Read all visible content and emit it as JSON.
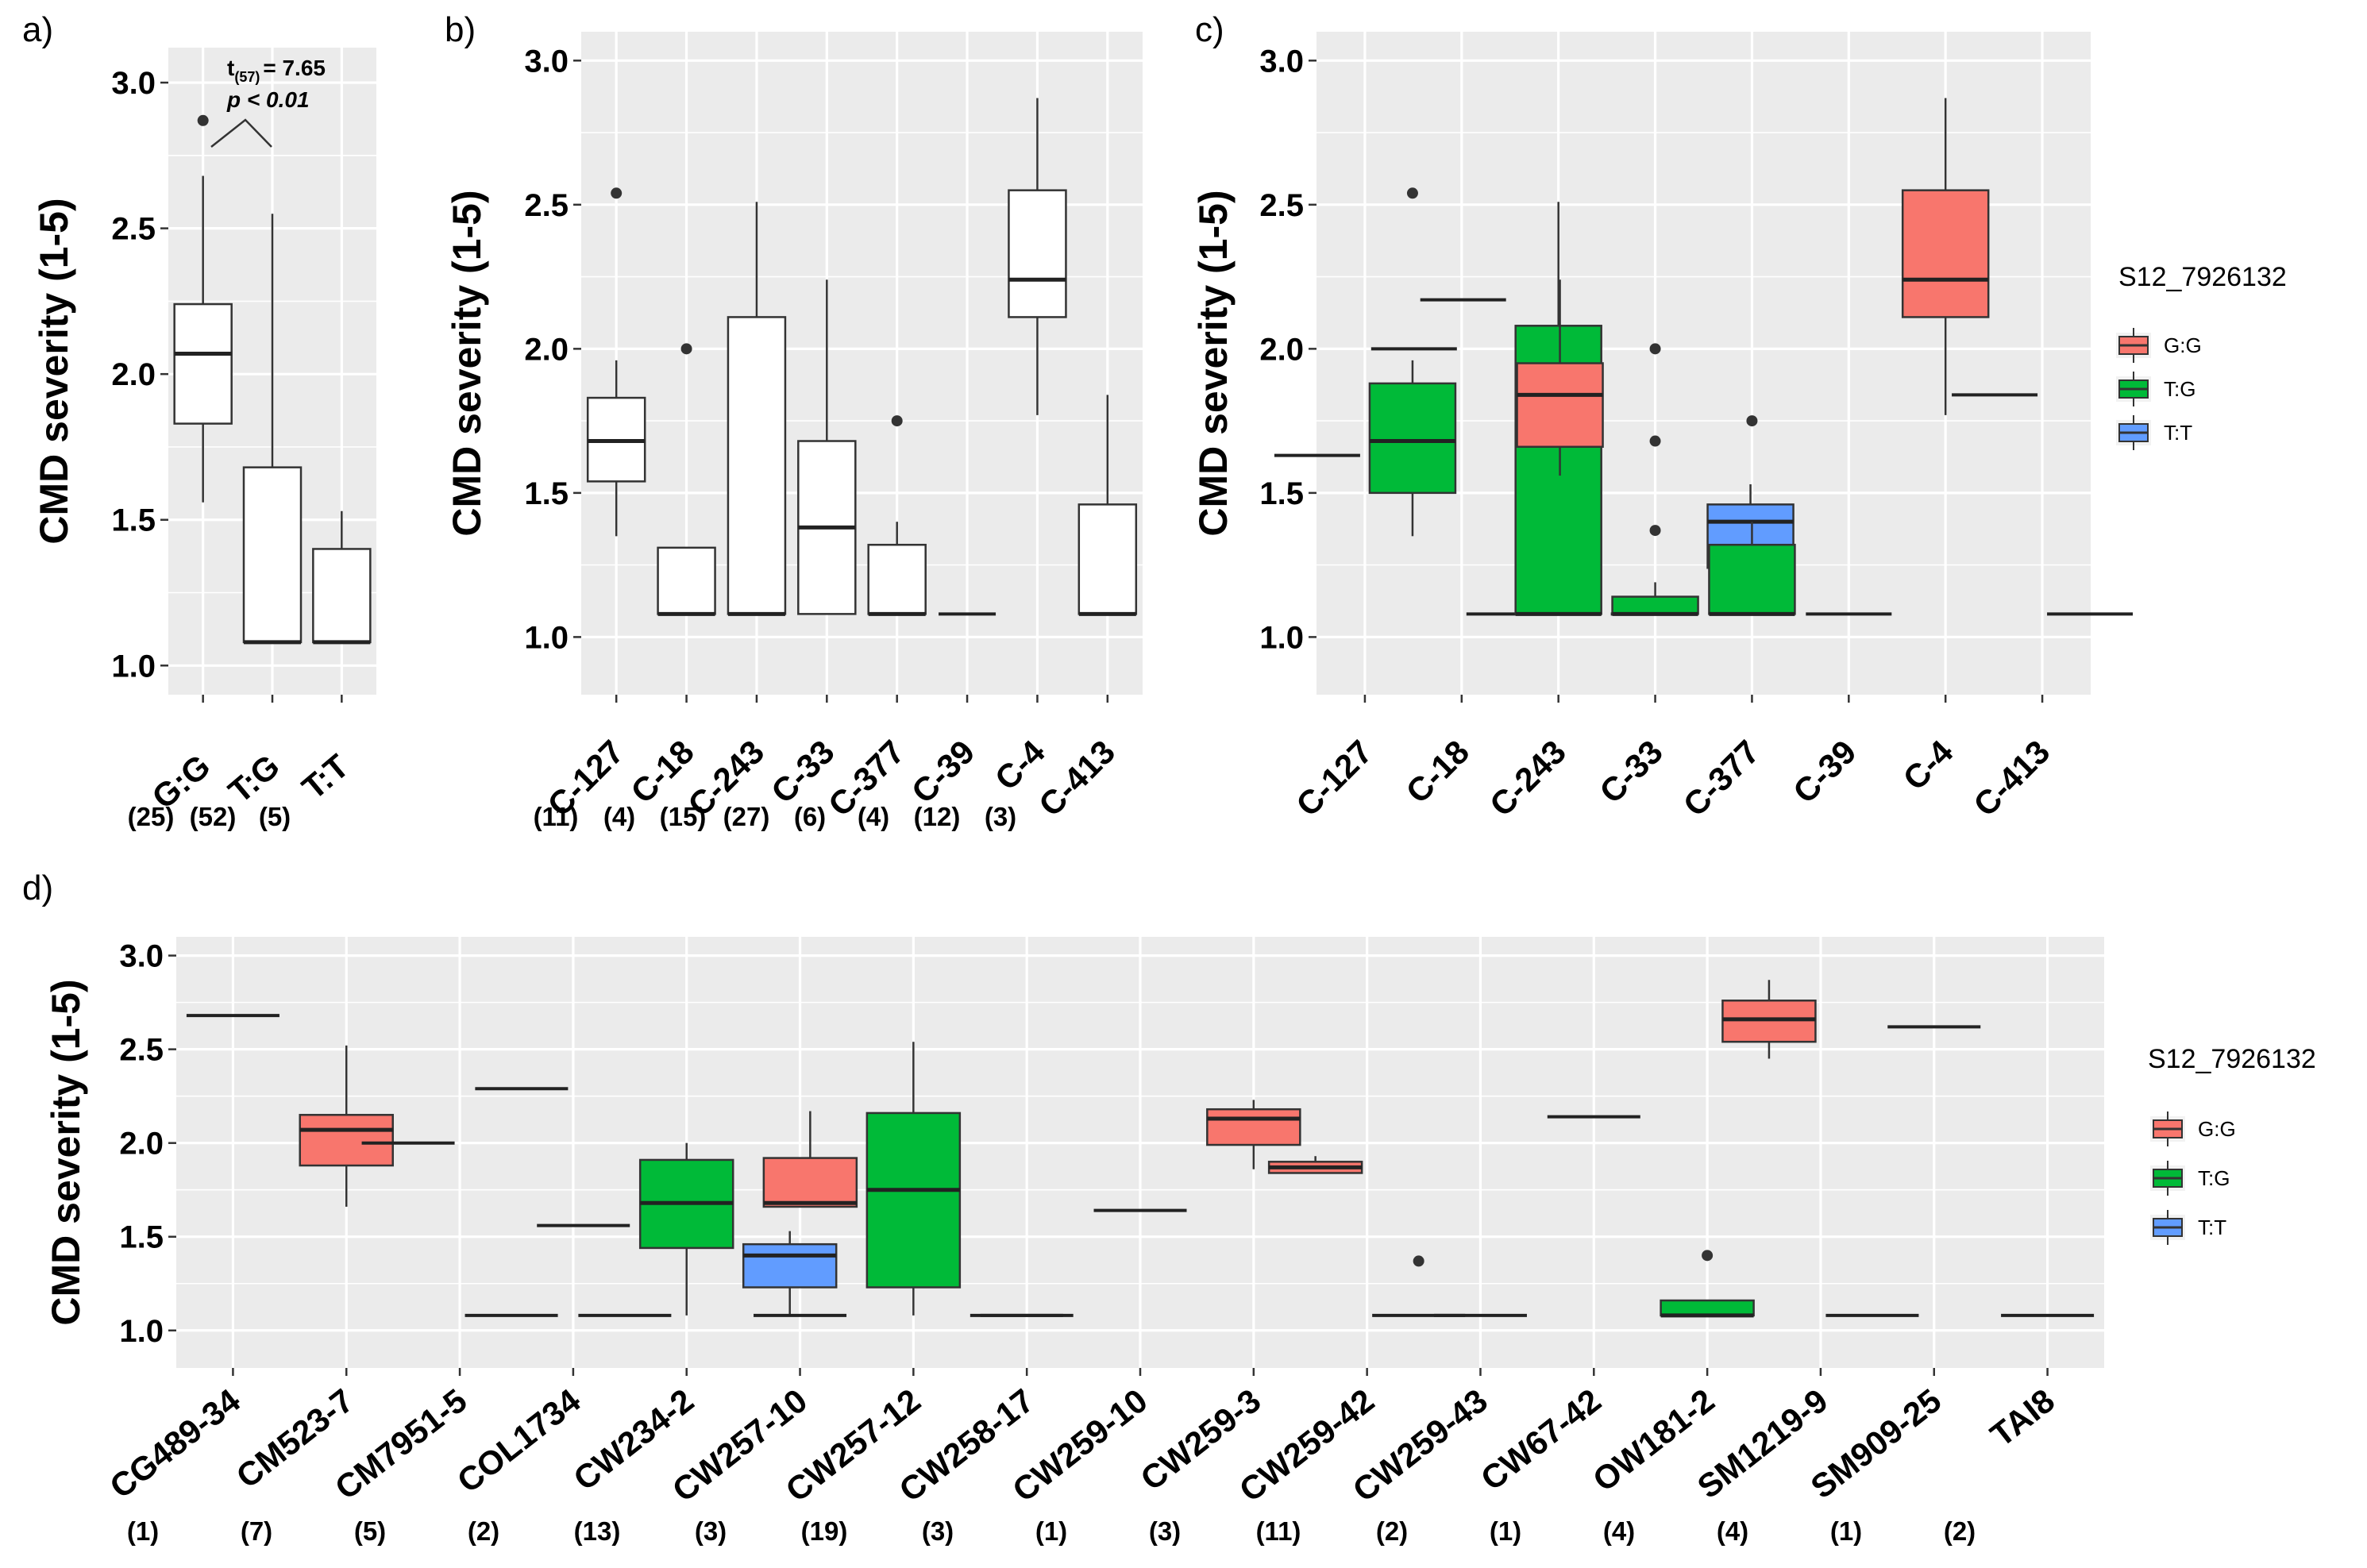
{
  "colors": {
    "G:G": "#F8766D",
    "T:G": "#00BA38",
    "T:T": "#619CFF",
    "white": "#FFFFFF",
    "line": "#333333"
  },
  "chart_data": [
    {
      "panel": "a)",
      "type": "boxplot",
      "ylabel": "CMD severity (1-5)",
      "ylim": [
        0.9,
        3.12
      ],
      "yticks": [
        "1.0",
        "1.5",
        "2.0",
        "2.5",
        "3.0"
      ],
      "categories": [
        "G:G",
        "T:G",
        "T:T"
      ],
      "counts": [
        "(25)",
        "(52)",
        "(5)"
      ],
      "annotation": {
        "t_label": "t",
        "t_sub": "(57)",
        "t_value": "= 7.65",
        "p_text": "p < 0.01"
      },
      "boxes": [
        {
          "cat": "G:G",
          "lo": 1.56,
          "q1": 1.83,
          "med": 2.07,
          "q3": 2.24,
          "hi": 2.68,
          "out": [
            2.87
          ],
          "fill": "white"
        },
        {
          "cat": "T:G",
          "lo": 1.08,
          "q1": 1.08,
          "med": 1.08,
          "q3": 1.68,
          "hi": 2.55,
          "out": [],
          "fill": "white"
        },
        {
          "cat": "T:T",
          "lo": 1.08,
          "q1": 1.08,
          "med": 1.08,
          "q3": 1.4,
          "hi": 1.53,
          "out": [],
          "fill": "white"
        }
      ]
    },
    {
      "panel": "b)",
      "type": "boxplot",
      "ylabel": "CMD severity (1-5)",
      "ylim": [
        0.8,
        3.1
      ],
      "yticks": [
        "1.0",
        "1.5",
        "2.0",
        "2.5",
        "3.0"
      ],
      "categories": [
        "C-127",
        "C-18",
        "C-243",
        "C-33",
        "C-377",
        "C-39",
        "C-4",
        "C-413"
      ],
      "counts": [
        "(11)",
        "(4)",
        "(15)",
        "(27)",
        "(6)",
        "(4)",
        "(12)",
        "(3)"
      ],
      "boxes": [
        {
          "cat": "C-127",
          "lo": 1.35,
          "q1": 1.54,
          "med": 1.68,
          "q3": 1.83,
          "hi": 1.96,
          "out": [
            2.54
          ],
          "fill": "white"
        },
        {
          "cat": "C-18",
          "lo": 1.08,
          "q1": 1.08,
          "med": 1.08,
          "q3": 1.31,
          "hi": 1.31,
          "out": [
            2.0
          ],
          "fill": "white"
        },
        {
          "cat": "C-243",
          "lo": 1.08,
          "q1": 1.08,
          "med": 1.08,
          "q3": 2.11,
          "hi": 2.51,
          "out": [],
          "fill": "white"
        },
        {
          "cat": "C-33",
          "lo": 1.08,
          "q1": 1.08,
          "med": 1.38,
          "q3": 1.68,
          "hi": 2.24,
          "out": [],
          "fill": "white"
        },
        {
          "cat": "C-377",
          "lo": 1.08,
          "q1": 1.08,
          "med": 1.08,
          "q3": 1.32,
          "hi": 1.4,
          "out": [
            1.75
          ],
          "fill": "white"
        },
        {
          "cat": "C-39",
          "lo": 1.08,
          "q1": 1.08,
          "med": 1.08,
          "q3": 1.08,
          "hi": 1.08,
          "out": [],
          "fill": "white"
        },
        {
          "cat": "C-4",
          "lo": 1.77,
          "q1": 2.11,
          "med": 2.24,
          "q3": 2.55,
          "hi": 2.87,
          "out": [],
          "fill": "white"
        },
        {
          "cat": "C-413",
          "lo": 1.08,
          "q1": 1.08,
          "med": 1.08,
          "q3": 1.46,
          "hi": 1.84,
          "out": [],
          "fill": "white"
        }
      ]
    },
    {
      "panel": "c)",
      "type": "boxplot",
      "ylabel": "CMD severity (1-5)",
      "ylim": [
        0.8,
        3.1
      ],
      "yticks": [
        "1.0",
        "1.5",
        "2.0",
        "2.5",
        "3.0"
      ],
      "categories": [
        "C-127",
        "C-18",
        "C-243",
        "C-33",
        "C-377",
        "C-39",
        "C-4",
        "C-413"
      ],
      "legend": {
        "title": "S12_7926132",
        "items": [
          "G:G",
          "T:G",
          "T:T"
        ]
      },
      "boxes": [
        {
          "cat": "C-127",
          "slot": 0,
          "nslots": 2,
          "lo": 1.63,
          "q1": 1.63,
          "med": 1.63,
          "q3": 1.63,
          "hi": 1.63,
          "out": [],
          "fill": "none"
        },
        {
          "cat": "C-127",
          "slot": 1,
          "nslots": 2,
          "lo": 1.35,
          "q1": 1.5,
          "med": 1.68,
          "q3": 1.88,
          "hi": 1.96,
          "out": [
            2.54
          ],
          "fill": "T:G"
        },
        {
          "cat": "C-18",
          "slot": 0,
          "nslots": 2,
          "lo": 2.0,
          "q1": 2.0,
          "med": 2.0,
          "q3": 2.0,
          "hi": 2.0,
          "out": [],
          "fill": "none"
        },
        {
          "cat": "C-18",
          "slot": 1,
          "nslots": 2,
          "lo": 1.08,
          "q1": 1.08,
          "med": 1.08,
          "q3": 1.08,
          "hi": 1.08,
          "out": [],
          "fill": "none"
        },
        {
          "cat": "C-243",
          "slot": 0,
          "nslots": 3,
          "lo": 2.17,
          "q1": 2.17,
          "med": 2.17,
          "q3": 2.17,
          "hi": 2.17,
          "out": [],
          "fill": "none"
        },
        {
          "cat": "C-243",
          "slot": 1,
          "nslots": 3,
          "lo": 1.08,
          "q1": 1.08,
          "med": 1.08,
          "q3": 2.08,
          "hi": 2.51,
          "out": [],
          "fill": "T:G"
        },
        {
          "cat": "C-243",
          "slot": 2,
          "nslots": 3,
          "lo": 1.08,
          "q1": 1.08,
          "med": 1.08,
          "q3": 1.08,
          "hi": 1.08,
          "out": [],
          "fill": "none"
        },
        {
          "cat": "C-33",
          "slot": 0,
          "nslots": 3,
          "lo": 1.56,
          "q1": 1.66,
          "med": 1.84,
          "q3": 1.95,
          "hi": 2.24,
          "out": [],
          "fill": "G:G"
        },
        {
          "cat": "C-33",
          "slot": 1,
          "nslots": 3,
          "lo": 1.08,
          "q1": 1.08,
          "med": 1.08,
          "q3": 1.14,
          "hi": 1.19,
          "out": [
            1.37,
            1.68,
            2.0
          ],
          "fill": "T:G"
        },
        {
          "cat": "C-33",
          "slot": 2,
          "nslots": 3,
          "lo": 1.08,
          "q1": 1.24,
          "med": 1.4,
          "q3": 1.46,
          "hi": 1.53,
          "out": [],
          "fill": "T:T"
        },
        {
          "cat": "C-377",
          "slot": 0,
          "nslots": 1,
          "lo": 1.08,
          "q1": 1.08,
          "med": 1.08,
          "q3": 1.32,
          "hi": 1.4,
          "out": [
            1.75
          ],
          "fill": "T:G"
        },
        {
          "cat": "C-39",
          "slot": 0,
          "nslots": 1,
          "lo": 1.08,
          "q1": 1.08,
          "med": 1.08,
          "q3": 1.08,
          "hi": 1.08,
          "out": [],
          "fill": "none"
        },
        {
          "cat": "C-4",
          "slot": 0,
          "nslots": 1,
          "lo": 1.77,
          "q1": 2.11,
          "med": 2.24,
          "q3": 2.55,
          "hi": 2.87,
          "out": [],
          "fill": "G:G"
        },
        {
          "cat": "C-413",
          "slot": 0,
          "nslots": 2,
          "lo": 1.84,
          "q1": 1.84,
          "med": 1.84,
          "q3": 1.84,
          "hi": 1.84,
          "out": [],
          "fill": "none"
        },
        {
          "cat": "C-413",
          "slot": 1,
          "nslots": 2,
          "lo": 1.08,
          "q1": 1.08,
          "med": 1.08,
          "q3": 1.08,
          "hi": 1.08,
          "out": [],
          "fill": "none"
        }
      ]
    },
    {
      "panel": "d)",
      "type": "boxplot",
      "ylabel": "CMD severity (1-5)",
      "ylim": [
        0.8,
        3.1
      ],
      "yticks": [
        "1.0",
        "1.5",
        "2.0",
        "2.5",
        "3.0"
      ],
      "categories": [
        "CG489-34",
        "CM523-7",
        "CM7951-5",
        "COL1734",
        "CW234-2",
        "CW257-10",
        "CW257-12",
        "CW258-17",
        "CW259-10",
        "CW259-3",
        "CW259-42",
        "CW259-43",
        "CW67-42",
        "OW181-2",
        "SM1219-9",
        "SM909-25",
        "TAI8"
      ],
      "counts": [
        "(1)",
        "(7)",
        "(5)",
        "(2)",
        "(13)",
        "(3)",
        "(19)",
        "(3)",
        "(1)",
        "(3)",
        "(11)",
        "(2)",
        "(1)",
        "(4)",
        "(4)",
        "(1)",
        "(2)"
      ],
      "legend": {
        "title": "S12_7926132",
        "items": [
          "G:G",
          "T:G",
          "T:T"
        ]
      },
      "boxes": [
        {
          "cat": "CG489-34",
          "slot": 0,
          "nslots": 1,
          "lo": 2.68,
          "q1": 2.68,
          "med": 2.68,
          "q3": 2.68,
          "hi": 2.68,
          "out": [],
          "fill": "none"
        },
        {
          "cat": "CM523-7",
          "slot": 0,
          "nslots": 1,
          "lo": 1.66,
          "q1": 1.88,
          "med": 2.07,
          "q3": 2.15,
          "hi": 2.52,
          "out": [],
          "fill": "G:G"
        },
        {
          "cat": "CM7951-5",
          "slot": 0,
          "nslots": 2,
          "lo": 2.0,
          "q1": 2.0,
          "med": 2.0,
          "q3": 2.0,
          "hi": 2.0,
          "out": [],
          "fill": "none"
        },
        {
          "cat": "CM7951-5",
          "slot": 1,
          "nslots": 2,
          "lo": 1.08,
          "q1": 1.08,
          "med": 1.08,
          "q3": 1.08,
          "hi": 1.08,
          "out": [],
          "fill": "none"
        },
        {
          "cat": "COL1734",
          "slot": 0,
          "nslots": 2,
          "lo": 2.29,
          "q1": 2.29,
          "med": 2.29,
          "q3": 2.29,
          "hi": 2.29,
          "out": [],
          "fill": "none"
        },
        {
          "cat": "COL1734",
          "slot": 1,
          "nslots": 2,
          "lo": 1.08,
          "q1": 1.08,
          "med": 1.08,
          "q3": 1.08,
          "hi": 1.08,
          "out": [],
          "fill": "none"
        },
        {
          "cat": "CW234-2",
          "slot": 0,
          "nslots": 3,
          "lo": 1.56,
          "q1": 1.56,
          "med": 1.56,
          "q3": 1.56,
          "hi": 1.56,
          "out": [],
          "fill": "none"
        },
        {
          "cat": "CW234-2",
          "slot": 1,
          "nslots": 3,
          "lo": 1.08,
          "q1": 1.44,
          "med": 1.68,
          "q3": 1.91,
          "hi": 2.0,
          "out": [],
          "fill": "T:G"
        },
        {
          "cat": "CW234-2",
          "slot": 2,
          "nslots": 3,
          "lo": 1.08,
          "q1": 1.23,
          "med": 1.4,
          "q3": 1.46,
          "hi": 1.53,
          "out": [],
          "fill": "T:T"
        },
        {
          "cat": "CW257-10",
          "slot": 0,
          "nslots": 1,
          "lo": 1.08,
          "q1": 1.08,
          "med": 1.08,
          "q3": 1.08,
          "hi": 1.08,
          "out": [],
          "fill": "none"
        },
        {
          "cat": "CW257-12",
          "slot": 0,
          "nslots": 3,
          "lo": 1.66,
          "q1": 1.66,
          "med": 1.68,
          "q3": 1.92,
          "hi": 2.17,
          "out": [],
          "fill": "G:G"
        },
        {
          "cat": "CW257-12",
          "slot": 1,
          "nslots": 3,
          "lo": 1.08,
          "q1": 1.23,
          "med": 1.75,
          "q3": 2.16,
          "hi": 2.54,
          "out": [],
          "fill": "T:G"
        },
        {
          "cat": "CW257-12",
          "slot": 2,
          "nslots": 3,
          "lo": 1.08,
          "q1": 1.08,
          "med": 1.08,
          "q3": 1.08,
          "hi": 1.08,
          "out": [],
          "fill": "none"
        },
        {
          "cat": "CW258-17",
          "slot": 0,
          "nslots": 1,
          "lo": 1.08,
          "q1": 1.08,
          "med": 1.08,
          "q3": 1.08,
          "hi": 1.08,
          "out": [],
          "fill": "none"
        },
        {
          "cat": "CW259-10",
          "slot": 0,
          "nslots": 1,
          "lo": 1.64,
          "q1": 1.64,
          "med": 1.64,
          "q3": 1.64,
          "hi": 1.64,
          "out": [],
          "fill": "none"
        },
        {
          "cat": "CW259-3",
          "slot": 0,
          "nslots": 1,
          "lo": 1.86,
          "q1": 1.99,
          "med": 2.13,
          "q3": 2.18,
          "hi": 2.23,
          "out": [],
          "fill": "G:G"
        },
        {
          "cat": "CW259-42",
          "slot": 0,
          "nslots": 2,
          "lo": 1.84,
          "q1": 1.84,
          "med": 1.87,
          "q3": 1.9,
          "hi": 1.93,
          "out": [],
          "fill": "G:G"
        },
        {
          "cat": "CW259-42",
          "slot": 1,
          "nslots": 2,
          "lo": 1.08,
          "q1": 1.08,
          "med": 1.08,
          "q3": 1.08,
          "hi": 1.08,
          "out": [
            1.37
          ],
          "fill": "none"
        },
        {
          "cat": "CW259-43",
          "slot": 0,
          "nslots": 1,
          "lo": 1.08,
          "q1": 1.08,
          "med": 1.08,
          "q3": 1.08,
          "hi": 1.08,
          "out": [],
          "fill": "none"
        },
        {
          "cat": "CW67-42",
          "slot": 0,
          "nslots": 1,
          "lo": 2.14,
          "q1": 2.14,
          "med": 2.14,
          "q3": 2.14,
          "hi": 2.14,
          "out": [],
          "fill": "none"
        },
        {
          "cat": "OW181-2",
          "slot": 0,
          "nslots": 1,
          "lo": 1.08,
          "q1": 1.08,
          "med": 1.08,
          "q3": 1.16,
          "hi": 1.16,
          "out": [
            1.4
          ],
          "fill": "T:G"
        },
        {
          "cat": "SM1219-9",
          "slot": 0,
          "nslots": 2,
          "lo": 2.45,
          "q1": 2.54,
          "med": 2.66,
          "q3": 2.76,
          "hi": 2.87,
          "out": [],
          "fill": "G:G"
        },
        {
          "cat": "SM1219-9",
          "slot": 1,
          "nslots": 2,
          "lo": 1.08,
          "q1": 1.08,
          "med": 1.08,
          "q3": 1.08,
          "hi": 1.08,
          "out": [],
          "fill": "none"
        },
        {
          "cat": "SM909-25",
          "slot": 0,
          "nslots": 1,
          "lo": 2.62,
          "q1": 2.62,
          "med": 2.62,
          "q3": 2.62,
          "hi": 2.62,
          "out": [],
          "fill": "none"
        },
        {
          "cat": "TAI8",
          "slot": 0,
          "nslots": 1,
          "lo": 1.08,
          "q1": 1.08,
          "med": 1.08,
          "q3": 1.08,
          "hi": 1.08,
          "out": [],
          "fill": "none"
        }
      ]
    }
  ]
}
